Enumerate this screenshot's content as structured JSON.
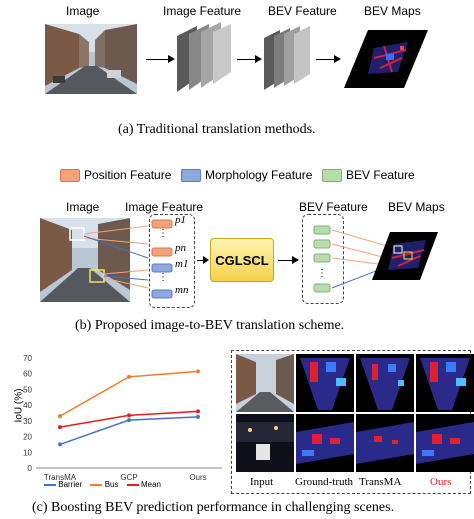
{
  "panel_a": {
    "labels": {
      "image": "Image",
      "image_feature": "Image Feature",
      "bev_feature": "BEV Feature",
      "bev_maps": "BEV Maps"
    },
    "caption": "(a) Traditional translation methods."
  },
  "panel_b": {
    "legend": [
      {
        "label": "Position Feature",
        "color": "#f4a27a"
      },
      {
        "label": "Morphology Feature",
        "color": "#8fa9dc"
      },
      {
        "label": "BEV Feature",
        "color": "#b8dcae"
      }
    ],
    "labels": {
      "image": "Image",
      "image_feature": "Image Feature",
      "bev_feature": "BEV Feature",
      "bev_maps": "BEV Maps",
      "module": "CGLSCL"
    },
    "feature_tokens": [
      "p1",
      "⋮",
      "pn",
      "m1",
      "⋮",
      "mn"
    ],
    "caption": "(b) Proposed image-to-BEV translation scheme."
  },
  "panel_c": {
    "grid_labels": [
      "Input",
      "Ground-truth",
      "TransMA",
      "Ours"
    ],
    "caption": "(c) Boosting BEV prediction performance in challenging scenes."
  },
  "chart_data": {
    "type": "line",
    "categories": [
      "TransMA",
      "GCP",
      "Ours"
    ],
    "ylabel": "IoU (%)",
    "ylim": [
      0,
      70
    ],
    "yticks": [
      0,
      10,
      20,
      30,
      40,
      50,
      60,
      70
    ],
    "series": [
      {
        "name": "Barrier",
        "color": "#4472c4",
        "values": [
          15,
          30.5,
          32.5
        ]
      },
      {
        "name": "Bus",
        "color": "#ed7d31",
        "values": [
          33,
          58,
          61.5
        ]
      },
      {
        "name": "Mean",
        "color": "#e02020",
        "values": [
          26,
          33.5,
          36
        ]
      }
    ]
  }
}
